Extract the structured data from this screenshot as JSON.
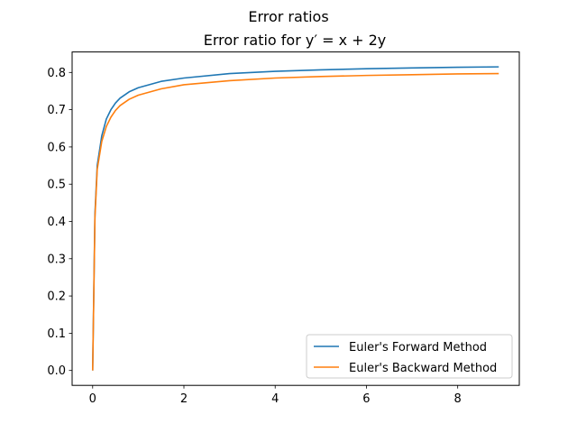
{
  "chart_data": {
    "type": "line",
    "suptitle": "Error ratios",
    "title": "Error ratio for y′ = x + 2y",
    "xlabel": "",
    "ylabel": "",
    "xlim": [
      -0.45,
      9.35
    ],
    "ylim": [
      -0.04,
      0.855
    ],
    "x_ticks": [
      0,
      2,
      4,
      6,
      8
    ],
    "y_ticks": [
      0.0,
      0.1,
      0.2,
      0.3,
      0.4,
      0.5,
      0.6,
      0.7,
      0.8
    ],
    "grid": false,
    "legend_position": "lower-right",
    "series": [
      {
        "name": "Euler's Forward Method",
        "color": "#1f77b4",
        "x": [
          0,
          0.05,
          0.1,
          0.2,
          0.3,
          0.4,
          0.5,
          0.6,
          0.8,
          1.0,
          1.5,
          2.0,
          3.0,
          4.0,
          5.0,
          6.0,
          7.0,
          8.0,
          8.9
        ],
        "y": [
          0.0,
          0.42,
          0.55,
          0.63,
          0.675,
          0.7,
          0.718,
          0.731,
          0.748,
          0.759,
          0.776,
          0.785,
          0.797,
          0.803,
          0.807,
          0.81,
          0.812,
          0.814,
          0.815
        ]
      },
      {
        "name": "Euler's Backward Method",
        "color": "#ff7f0e",
        "x": [
          0,
          0.05,
          0.1,
          0.2,
          0.3,
          0.4,
          0.5,
          0.6,
          0.8,
          1.0,
          1.5,
          2.0,
          3.0,
          4.0,
          5.0,
          6.0,
          7.0,
          8.0,
          8.9
        ],
        "y": [
          0.0,
          0.41,
          0.54,
          0.615,
          0.655,
          0.68,
          0.698,
          0.711,
          0.728,
          0.739,
          0.756,
          0.767,
          0.778,
          0.785,
          0.789,
          0.792,
          0.794,
          0.796,
          0.797
        ]
      }
    ]
  }
}
